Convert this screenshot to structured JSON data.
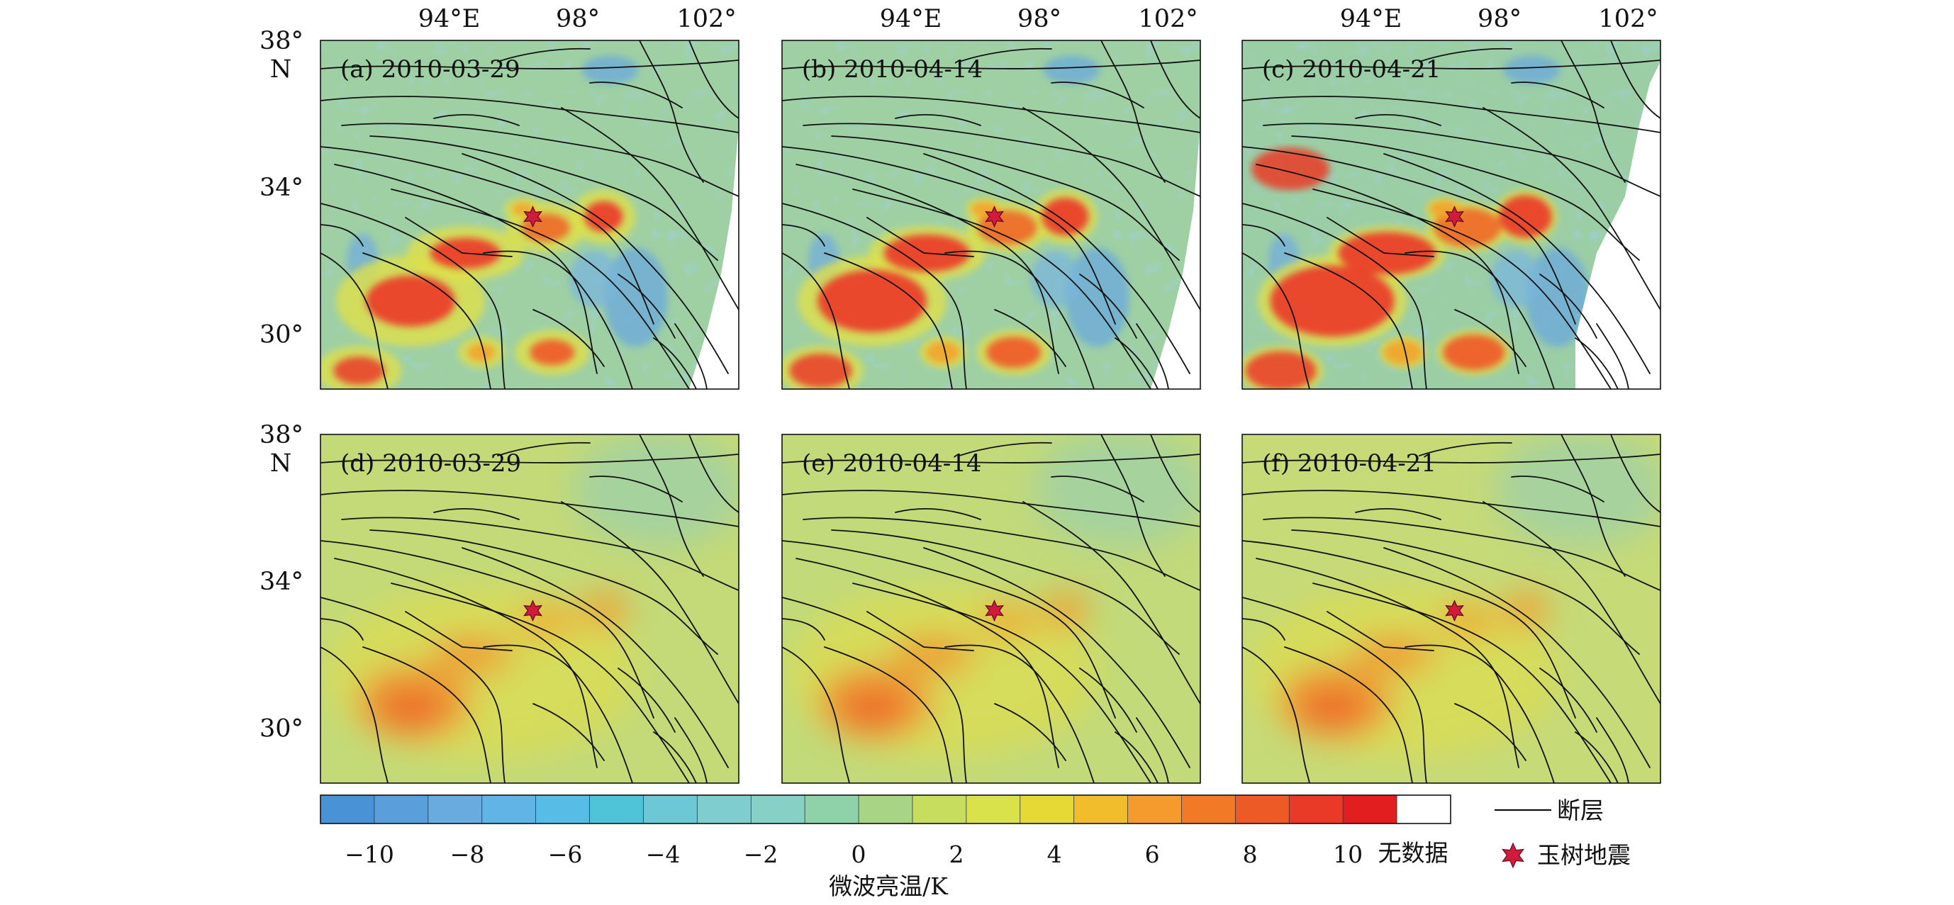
{
  "axes": {
    "lon_labels": [
      "94°E",
      "98°",
      "102°"
    ],
    "lat_labels": [
      "38°",
      "34°",
      "30°"
    ],
    "lat_unit": "N"
  },
  "panels": [
    {
      "label": "(a) 2010-03-29",
      "row": 0,
      "col": 0,
      "field": "raw",
      "nodata_edge": true
    },
    {
      "label": "(b) 2010-04-14",
      "row": 0,
      "col": 1,
      "field": "raw",
      "nodata_edge": true
    },
    {
      "label": "(c) 2010-04-21",
      "row": 0,
      "col": 2,
      "field": "raw",
      "nodata_edge": true
    },
    {
      "label": "(d) 2010-03-29",
      "row": 1,
      "col": 0,
      "field": "smooth",
      "nodata_edge": false
    },
    {
      "label": "(e) 2010-04-14",
      "row": 1,
      "col": 1,
      "field": "smooth",
      "nodata_edge": false
    },
    {
      "label": "(f) 2010-04-21",
      "row": 1,
      "col": 2,
      "field": "smooth",
      "nodata_edge": false
    }
  ],
  "epicenter": {
    "lon": 96.6,
    "lat": 33.2,
    "color": "#d21a3c"
  },
  "colorbar": {
    "title": "微波亮温/K",
    "ticks": [
      "−10",
      "−8",
      "−6",
      "−4",
      "−2",
      "0",
      "2",
      "4",
      "6",
      "8",
      "10"
    ],
    "nodata_label": "无数据",
    "min": -11,
    "max": 11,
    "colors": [
      "#4a92d6",
      "#5a9fdb",
      "#6aabdf",
      "#60b4e6",
      "#58bde6",
      "#4fc4d8",
      "#6dc8d6",
      "#80cdd0",
      "#87d0c5",
      "#8fd2aa",
      "#a8d486",
      "#c7dd5e",
      "#d9e24a",
      "#e6d936",
      "#f2bd2d",
      "#f59a2c",
      "#f27a26",
      "#ed5a26",
      "#e83a26",
      "#e21e1e",
      "#ffffff"
    ]
  },
  "legend": {
    "fault_label": "断层",
    "quake_label": "玉树地震"
  }
}
